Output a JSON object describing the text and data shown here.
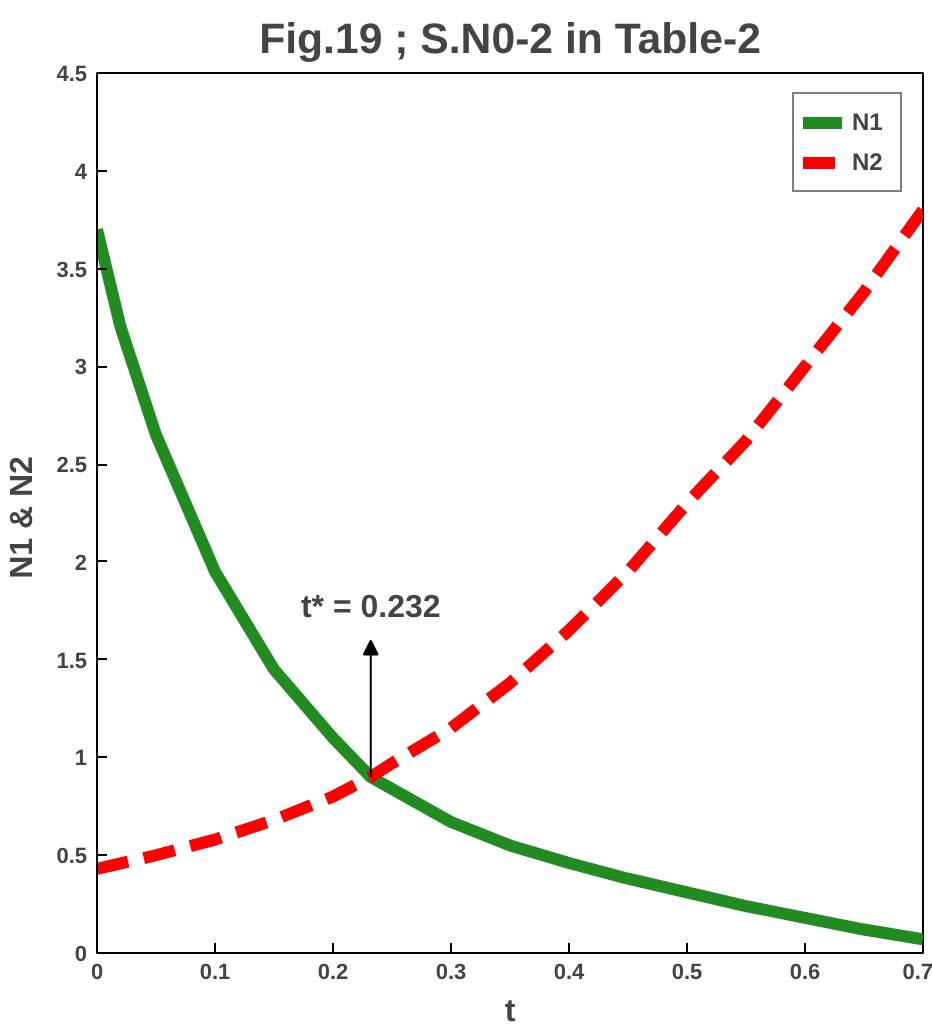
{
  "chart_data": {
    "type": "line",
    "title": "Fig.19 ; S.N0-2 in Table-2",
    "xlabel": "t",
    "ylabel": "N1  & N2",
    "series": [
      {
        "name": "N1",
        "color": "#228b22",
        "line_style": "solid",
        "x": [
          0,
          0.02,
          0.05,
          0.1,
          0.15,
          0.2,
          0.232,
          0.3,
          0.35,
          0.4,
          0.45,
          0.5,
          0.55,
          0.6,
          0.65,
          0.7
        ],
        "values": [
          3.7,
          3.2,
          2.65,
          1.95,
          1.45,
          1.1,
          0.9,
          0.67,
          0.55,
          0.46,
          0.38,
          0.31,
          0.24,
          0.18,
          0.12,
          0.07
        ]
      },
      {
        "name": "N2",
        "color": "#ff0000",
        "line_style": "dashed",
        "x": [
          0,
          0.05,
          0.1,
          0.15,
          0.2,
          0.232,
          0.25,
          0.3,
          0.35,
          0.4,
          0.45,
          0.5,
          0.55,
          0.6,
          0.65,
          0.7
        ],
        "values": [
          0.43,
          0.5,
          0.58,
          0.68,
          0.8,
          0.9,
          0.97,
          1.15,
          1.38,
          1.65,
          1.95,
          2.3,
          2.62,
          3.0,
          3.38,
          3.8
        ]
      }
    ],
    "xlim": [
      0,
      0.7
    ],
    "xticks": [
      0,
      0.1,
      0.2,
      0.3,
      0.4,
      0.5,
      0.6,
      0.7
    ],
    "ylim": [
      0,
      4.5
    ],
    "yticks": [
      0,
      0.5,
      1,
      1.5,
      2,
      2.5,
      3,
      3.5,
      4,
      4.5
    ],
    "grid": false,
    "legend": "top right",
    "annotations": [
      {
        "text": "t* = 0.232",
        "x": 0.232,
        "y": 0.9
      }
    ]
  }
}
